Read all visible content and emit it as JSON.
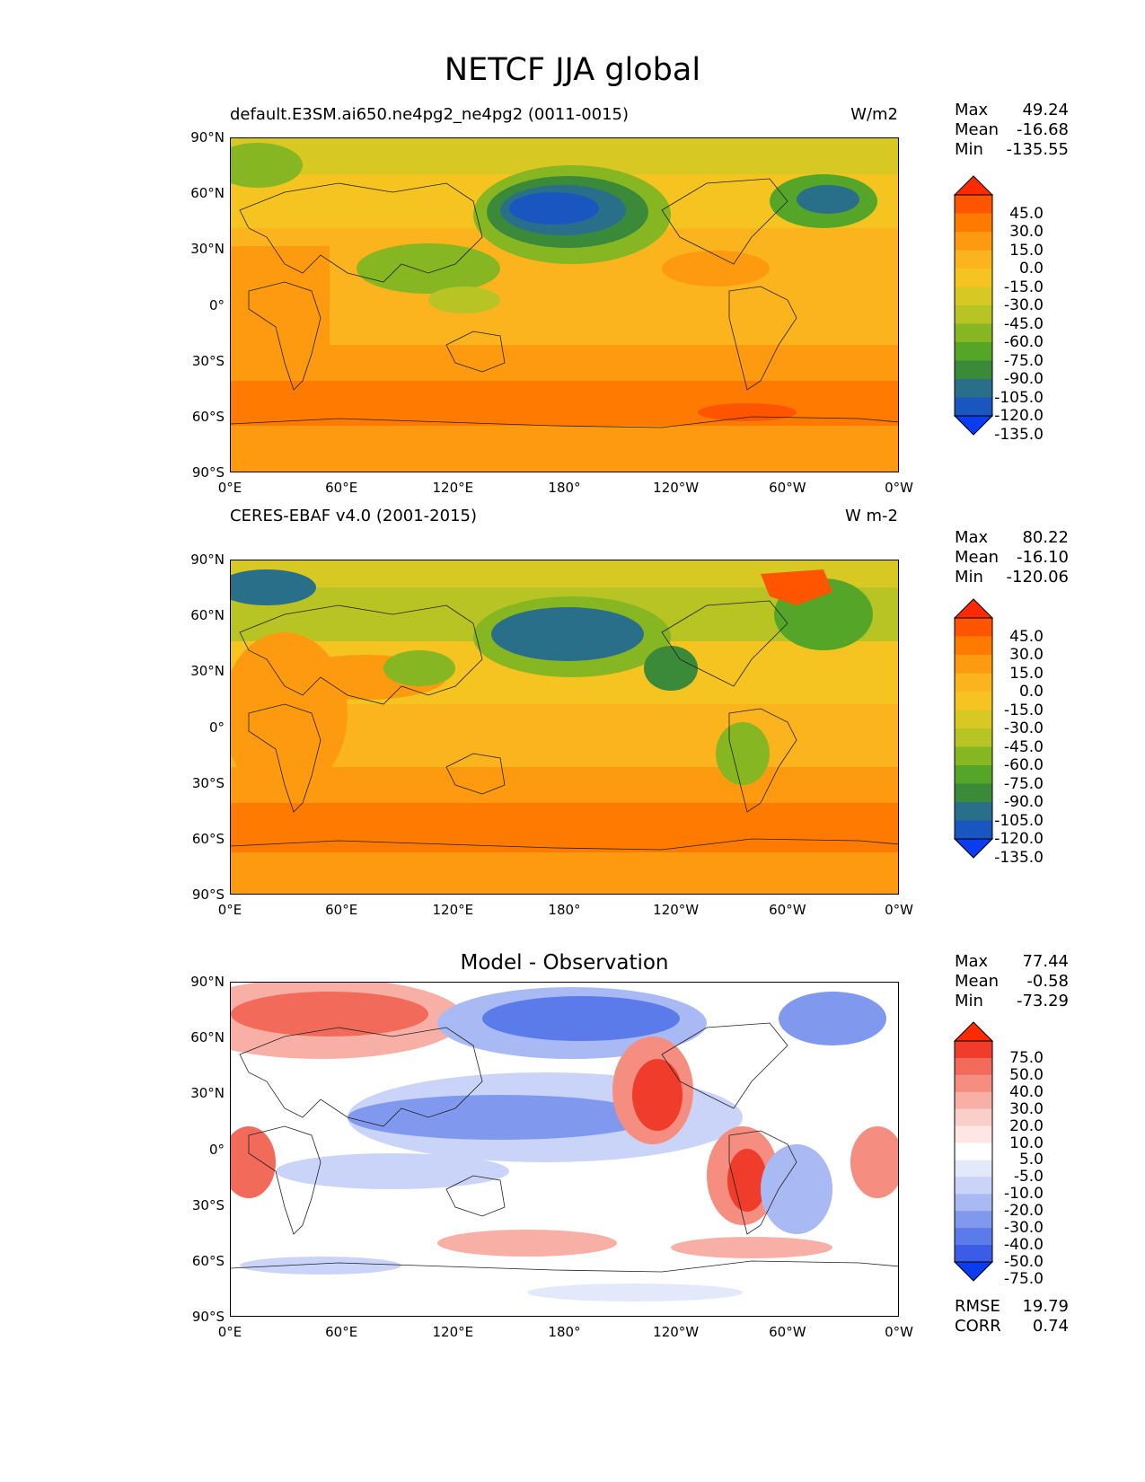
{
  "title": "NETCF JJA global",
  "lat_ticks": [
    "90°N",
    "60°N",
    "30°N",
    "0°",
    "30°S",
    "60°S",
    "90°S"
  ],
  "lon_ticks": [
    "0°E",
    "60°E",
    "120°E",
    "180°",
    "120°W",
    "60°W",
    "0°W"
  ],
  "panels": [
    {
      "id": "model",
      "left_title": "default.E3SM.ai650.ne4pg2_ne4pg2 (0011-0015)",
      "right_title": "W/m2",
      "center_title": "",
      "stats": [
        {
          "label": "Max",
          "value": "49.24"
        },
        {
          "label": "Mean",
          "value": "-16.68"
        },
        {
          "label": "Min",
          "value": "-135.55"
        }
      ],
      "colorbar": {
        "labels": [
          "45.0",
          "30.0",
          "15.0",
          "0.0",
          "-15.0",
          "-30.0",
          "-45.0",
          "-60.0",
          "-75.0",
          "-90.0",
          "-105.0",
          "-120.0",
          "-135.0"
        ],
        "colors": [
          "#ff2a00",
          "#ff5500",
          "#ff7a00",
          "#fe9a10",
          "#fbb41e",
          "#f5c420",
          "#d7c824",
          "#b7c423",
          "#86b621",
          "#55a628",
          "#3a8a3a",
          "#2a6f8a",
          "#1a56c0",
          "#0b3cf0"
        ]
      },
      "extra_stats": []
    },
    {
      "id": "obs",
      "left_title": "CERES-EBAF v4.0 (2001-2015)",
      "right_title": "W m-2",
      "center_title": "",
      "stats": [
        {
          "label": "Max",
          "value": "80.22"
        },
        {
          "label": "Mean",
          "value": "-16.10"
        },
        {
          "label": "Min",
          "value": "-120.06"
        }
      ],
      "colorbar": {
        "labels": [
          "45.0",
          "30.0",
          "15.0",
          "0.0",
          "-15.0",
          "-30.0",
          "-45.0",
          "-60.0",
          "-75.0",
          "-90.0",
          "-105.0",
          "-120.0",
          "-135.0"
        ],
        "colors": [
          "#ff2a00",
          "#ff5500",
          "#ff7a00",
          "#fe9a10",
          "#fbb41e",
          "#f5c420",
          "#d7c824",
          "#b7c423",
          "#86b621",
          "#55a628",
          "#3a8a3a",
          "#2a6f8a",
          "#1a56c0",
          "#0b3cf0"
        ]
      },
      "extra_stats": []
    },
    {
      "id": "diff",
      "left_title": "",
      "right_title": "",
      "center_title": "Model - Observation",
      "stats": [
        {
          "label": "Max",
          "value": "77.44"
        },
        {
          "label": "Mean",
          "value": "-0.58"
        },
        {
          "label": "Min",
          "value": "-73.29"
        }
      ],
      "colorbar": {
        "labels": [
          "75.0",
          "50.0",
          "40.0",
          "30.0",
          "20.0",
          "10.0",
          "5.0",
          "-5.0",
          "-10.0",
          "-20.0",
          "-30.0",
          "-40.0",
          "-50.0",
          "-75.0"
        ],
        "colors": [
          "#ff2a00",
          "#f03c2a",
          "#f26a5a",
          "#f58e80",
          "#f8b0a6",
          "#fbcfc9",
          "#fde6e3",
          "#ffffff",
          "#e3e9fb",
          "#c9d4f8",
          "#a8b9f4",
          "#8099ef",
          "#5c7bea",
          "#3a5ce6",
          "#0b3cf0"
        ]
      },
      "extra_stats": [
        {
          "label": "RMSE",
          "value": "19.79"
        },
        {
          "label": "CORR",
          "value": "0.74"
        }
      ]
    }
  ]
}
